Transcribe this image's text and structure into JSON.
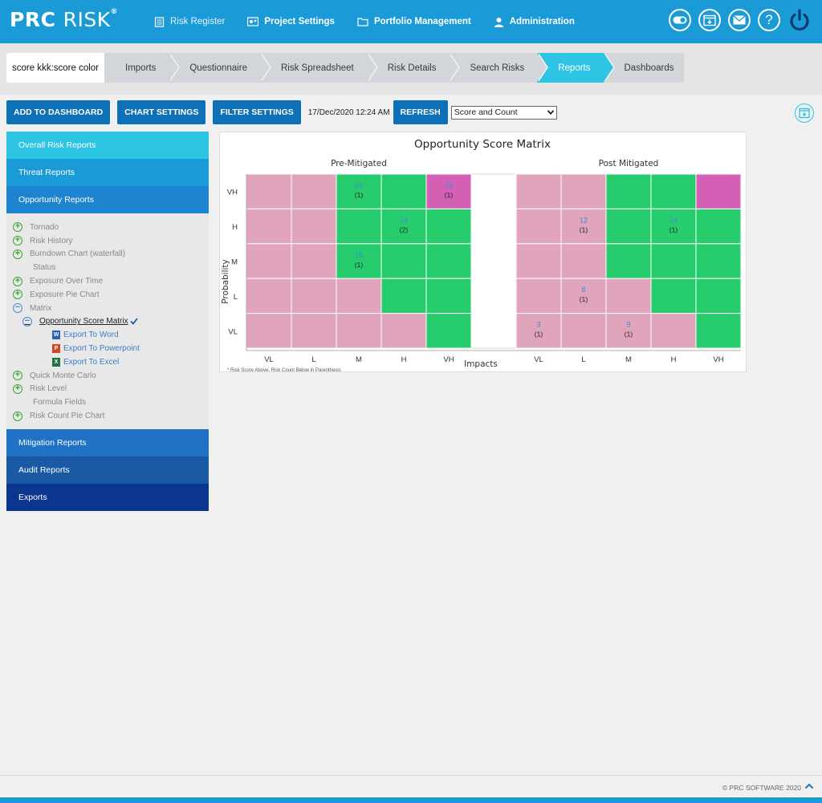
{
  "header": {
    "logo_main": "PRC",
    "logo_sub": "RISK",
    "logo_reg": "®",
    "nav": [
      {
        "label": "Risk Register",
        "icon": "list-icon"
      },
      {
        "label": "Project Settings",
        "icon": "settings-gears-icon"
      },
      {
        "label": "Portfolio Management",
        "icon": "folder-icon"
      },
      {
        "label": "Administration",
        "icon": "user-icon"
      }
    ],
    "right_icons": [
      "toggle-icon",
      "calendar-download-icon",
      "mail-icon",
      "help-icon",
      "power-icon"
    ],
    "help_glyph": "?"
  },
  "breadcrumb": {
    "project": "score kkk:score color",
    "tabs": [
      "Imports",
      "Questionnaire",
      "Risk Spreadsheet",
      "Risk Details",
      "Search Risks",
      "Reports",
      "Dashboards"
    ],
    "active_tab": "Reports"
  },
  "toolbar": {
    "add_to_dashboard": "ADD TO DASHBOARD",
    "chart_settings": "CHART SETTINGS",
    "filter_settings": "FILTER SETTINGS",
    "timestamp": "17/Dec/2020 12:24 AM",
    "refresh": "REFRESH",
    "view_select": "Score and Count"
  },
  "sidebar": {
    "sections_top": [
      {
        "label": "Overall Risk Reports",
        "color": "#2ec4e4"
      },
      {
        "label": "Threat Reports",
        "color": "#1a9ad6"
      },
      {
        "label": "Opportunity Reports",
        "color": "#1f84d0"
      }
    ],
    "tree": {
      "tornado": "Tornado",
      "risk_history": "Risk History",
      "burndown": "Burndown Chart (waterfall)",
      "status": "Status",
      "exposure_over_time": "Exposure Over Time",
      "exposure_pie": "Exposure Pie Chart",
      "matrix": "Matrix",
      "osm": "Opportunity Score Matrix",
      "export_word": "Export To Word",
      "export_ppt": "Export To Powerpoint",
      "export_excel": "Export To Excel",
      "quick_monte_carlo": "Quick Monte Carlo",
      "risk_level": "Risk Level",
      "formula_fields": "Formula Fields",
      "risk_count_pie": "Risk Count Pie Chart"
    },
    "sections_bottom": [
      {
        "label": "Mitigation Reports",
        "color": "#1f72c4"
      },
      {
        "label": "Audit Reports",
        "color": "#1a5aa5"
      },
      {
        "label": "Exports",
        "color": "#0c3590"
      }
    ]
  },
  "chart_data": {
    "type": "heatmap",
    "title": "Opportunity Score Matrix",
    "xlabel": "Impacts",
    "ylabel": "Probability",
    "footnote": "* Risk Score Above, Risk Count Below in Parenthesis",
    "x_categories": [
      "VL",
      "L",
      "M",
      "H",
      "VH"
    ],
    "y_categories": [
      "VH",
      "H",
      "M",
      "L",
      "VL"
    ],
    "colors": {
      "pink": "#e0a4bd",
      "green": "#27cc6c",
      "magenta": "#d460b6",
      "score": "#3b8cd6",
      "count": "#222222"
    },
    "panels": [
      {
        "title": "Pre-Mitigated",
        "grid": [
          [
            "pink",
            "pink",
            "green",
            "green",
            "magenta"
          ],
          [
            "pink",
            "pink",
            "green",
            "green",
            "green"
          ],
          [
            "pink",
            "pink",
            "green",
            "green",
            "green"
          ],
          [
            "pink",
            "pink",
            "pink",
            "green",
            "green"
          ],
          [
            "pink",
            "pink",
            "pink",
            "pink",
            "green"
          ]
        ],
        "cells": [
          {
            "row": "VH",
            "col": "M",
            "score": "21",
            "count": "(1)"
          },
          {
            "row": "VH",
            "col": "VH",
            "score": "25",
            "count": "(1)"
          },
          {
            "row": "H",
            "col": "H",
            "score": "24",
            "count": "(2)"
          },
          {
            "row": "M",
            "col": "M",
            "score": "15",
            "count": "(1)"
          }
        ]
      },
      {
        "title": "Post Mitigated",
        "grid": [
          [
            "pink",
            "pink",
            "green",
            "green",
            "magenta"
          ],
          [
            "pink",
            "pink",
            "green",
            "green",
            "green"
          ],
          [
            "pink",
            "pink",
            "green",
            "green",
            "green"
          ],
          [
            "pink",
            "pink",
            "pink",
            "green",
            "green"
          ],
          [
            "pink",
            "pink",
            "pink",
            "pink",
            "green"
          ]
        ],
        "cells": [
          {
            "row": "H",
            "col": "L",
            "score": "12",
            "count": "(1)"
          },
          {
            "row": "H",
            "col": "H",
            "score": "24",
            "count": "(1)"
          },
          {
            "row": "L",
            "col": "L",
            "score": "8",
            "count": "(1)"
          },
          {
            "row": "VL",
            "col": "VL",
            "score": "3",
            "count": "(1)"
          },
          {
            "row": "VL",
            "col": "M",
            "score": "9",
            "count": "(1)"
          }
        ]
      }
    ]
  },
  "footer": {
    "copyright": "© PRC SOFTWARE 2020"
  }
}
